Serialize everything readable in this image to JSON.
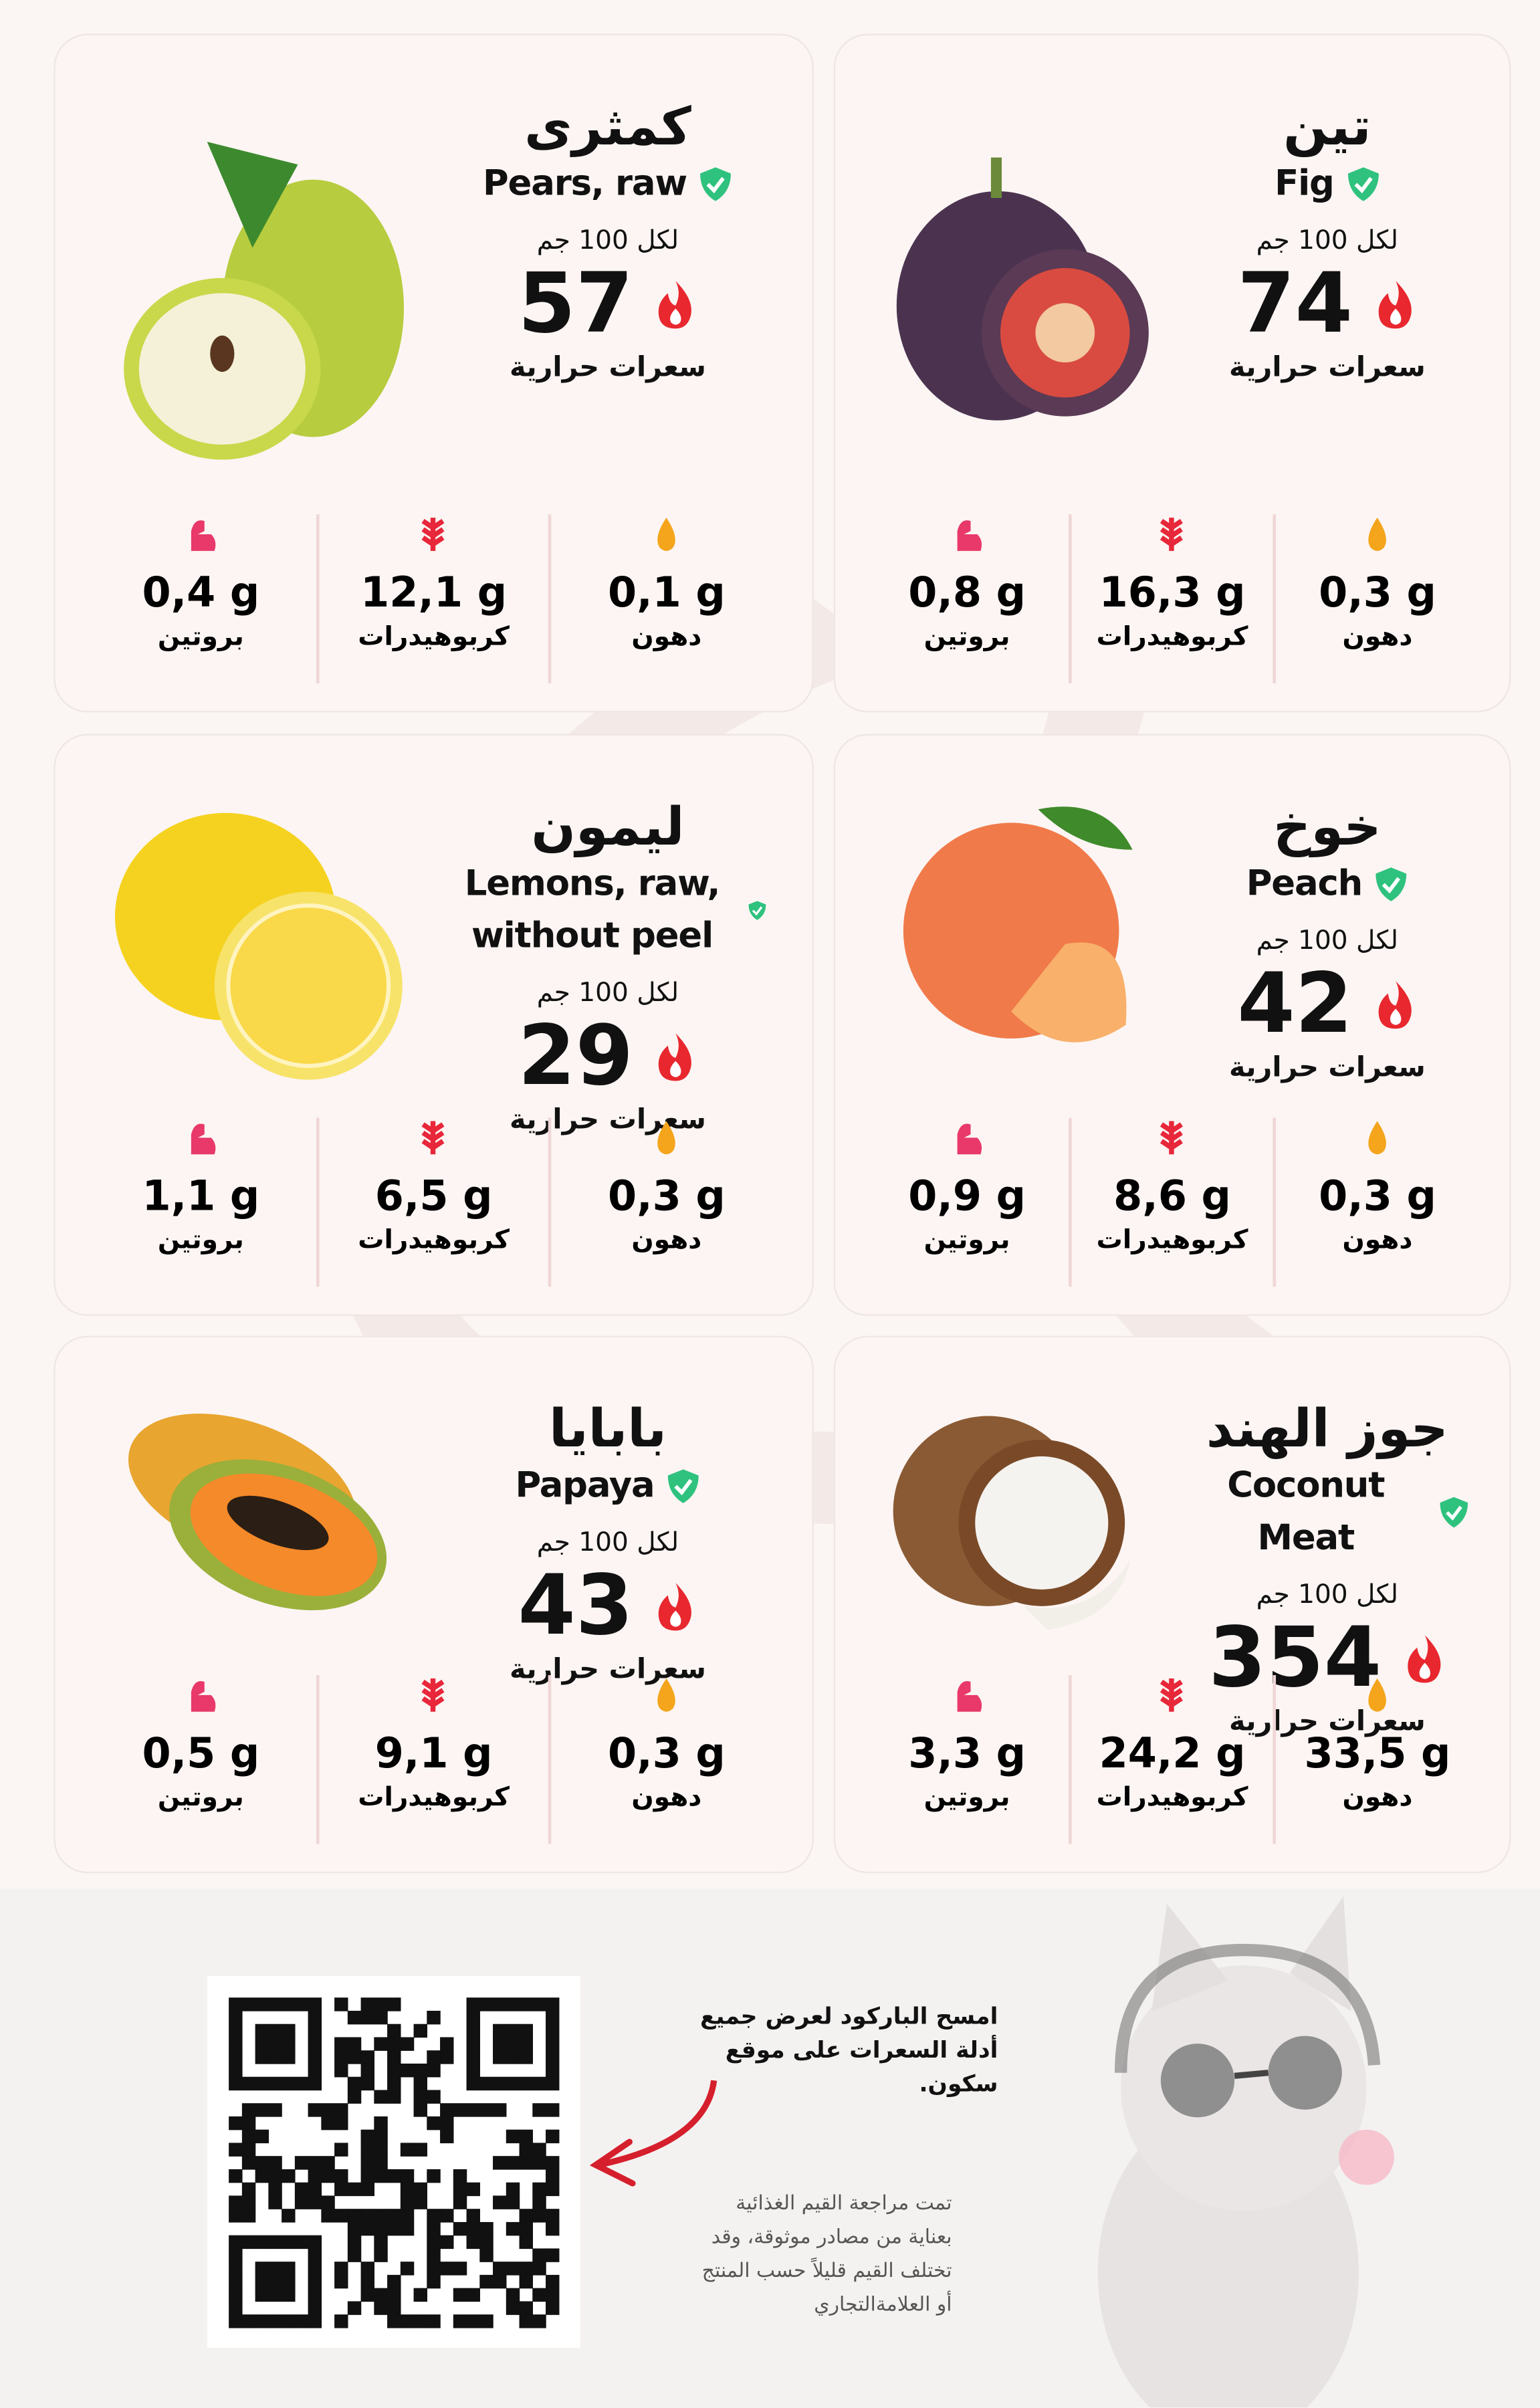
{
  "cards": [
    {
      "name_ar": "تين",
      "name_en": "Fig",
      "per": "لكل 100 جم",
      "calories": 74,
      "calories_label": "سعرات حرارية",
      "nutrients": [
        {
          "value": "0,3 g",
          "label": "دهون"
        },
        {
          "value": "16,3 g",
          "label": "كربوهيدرات"
        },
        {
          "value": "0,8 g",
          "label": "بروتين"
        }
      ]
    },
    {
      "name_ar": "كمثرى",
      "name_en": "Pears, raw",
      "per": "لكل 100 جم",
      "calories": 57,
      "calories_label": "سعرات حرارية",
      "nutrients": [
        {
          "value": "0,1 g",
          "label": "دهون"
        },
        {
          "value": "12,1 g",
          "label": "كربوهيدرات"
        },
        {
          "value": "0,4 g",
          "label": "بروتين"
        }
      ]
    },
    {
      "name_ar": "خوخ",
      "name_en": "Peach",
      "per": "لكل 100 جم",
      "calories": 42,
      "calories_label": "سعرات حرارية",
      "nutrients": [
        {
          "value": "0,3 g",
          "label": "دهون"
        },
        {
          "value": "8,6 g",
          "label": "كربوهيدرات"
        },
        {
          "value": "0,9 g",
          "label": "بروتين"
        }
      ]
    },
    {
      "name_ar": "ليمون",
      "name_en": "Lemons, raw, without peel",
      "per": "لكل 100 جم",
      "calories": 29,
      "calories_label": "سعرات حرارية",
      "nutrients": [
        {
          "value": "0,3 g",
          "label": "دهون"
        },
        {
          "value": "6,5 g",
          "label": "كربوهيدرات"
        },
        {
          "value": "1,1 g",
          "label": "بروتين"
        }
      ]
    },
    {
      "name_ar": "جوز الهند",
      "name_en": "Coconut Meat",
      "per": "لكل 100 جم",
      "calories": 354,
      "calories_label": "سعرات حرارية",
      "nutrients": [
        {
          "value": "33,5 g",
          "label": "دهون"
        },
        {
          "value": "24,2 g",
          "label": "كربوهيدرات"
        },
        {
          "value": "3,3 g",
          "label": "بروتين"
        }
      ]
    },
    {
      "name_ar": "بابايا",
      "name_en": "Papaya",
      "per": "لكل 100 جم",
      "calories": 43,
      "calories_label": "سعرات حرارية",
      "nutrients": [
        {
          "value": "0,3 g",
          "label": "دهون"
        },
        {
          "value": "9,1 g",
          "label": "كربوهيدرات"
        },
        {
          "value": "0,5 g",
          "label": "بروتين"
        }
      ]
    }
  ],
  "footer": {
    "scan_lines": [
      "امسح الباركود لعرض جميع",
      "أدلة السعرات على موقع سكون."
    ],
    "note_lines": [
      "تمت مراجعة القيم الغذائية",
      "بعناية من مصادر موثوقة، وقد",
      "تختلف القيم قليلاً حسب المنتج",
      "أو العلامةالتجاري"
    ]
  }
}
